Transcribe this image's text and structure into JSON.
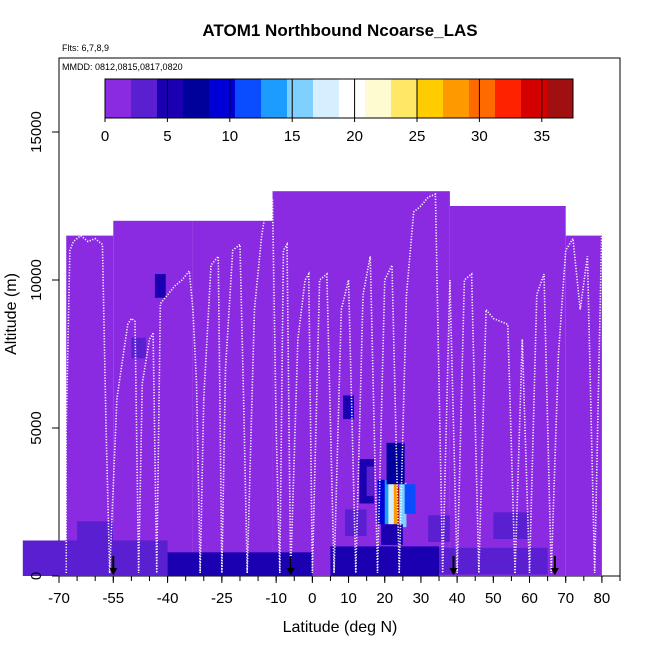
{
  "chart_data": {
    "type": "heatmap",
    "title": "ATOM1 Northbound Ncoarse_LAS",
    "flights_label": "Flts: 6,7,8,9",
    "dates_label": "MMDD: 0812,0815,0817,0820",
    "xlabel": "Latitude (deg N)",
    "ylabel": "Altitude (m)",
    "xlim": [
      -70,
      85
    ],
    "ylim": [
      0,
      17500
    ],
    "x_tick_labels": [
      "-70",
      "-55",
      "-40",
      "-25",
      "-10",
      "0",
      "10",
      "20",
      "30",
      "40",
      "50",
      "60",
      "70",
      "80"
    ],
    "x_tick_values": [
      -70,
      -55,
      -40,
      -25,
      -10,
      0,
      10,
      20,
      30,
      40,
      50,
      60,
      70,
      80
    ],
    "y_tick_labels": [
      "0",
      "5000",
      "10000",
      "15000"
    ],
    "y_tick_values": [
      0,
      5000,
      10000,
      15000
    ],
    "colorbar": {
      "range": [
        0,
        37.5
      ],
      "tick_labels": [
        "0",
        "5",
        "10",
        "15",
        "20",
        "25",
        "30",
        "35"
      ],
      "tick_values": [
        0,
        5,
        10,
        15,
        20,
        25,
        30,
        35
      ],
      "colors": [
        "#8a2be2",
        "#5a1fd0",
        "#1a00b0",
        "#00009a",
        "#0000d6",
        "#0a4cff",
        "#1c9cff",
        "#7fcfff",
        "#d6efff",
        "#ffffff",
        "#fffbd0",
        "#ffe866",
        "#ffcc00",
        "#ff9900",
        "#ff6a00",
        "#ff2200",
        "#d40000",
        "#a01010"
      ]
    },
    "background_value": 2,
    "coverage_bounds": [
      {
        "lat_from": -68,
        "lat_to": -55,
        "alt_top": 11500
      },
      {
        "lat_from": -55,
        "lat_to": -33,
        "alt_top": 12000
      },
      {
        "lat_from": -33,
        "lat_to": -11,
        "alt_top": 12000
      },
      {
        "lat_from": -11,
        "lat_to": 38,
        "alt_top": 13000
      },
      {
        "lat_from": 38,
        "lat_to": 70,
        "alt_top": 12500
      },
      {
        "lat_from": 70,
        "lat_to": 80,
        "alt_top": 11500
      }
    ],
    "cells": [
      {
        "lat": 20,
        "alt": 2500,
        "dlat": 4,
        "dalt": 1500,
        "value": 10
      },
      {
        "lat": 21,
        "alt": 2500,
        "dlat": 2,
        "dalt": 1500,
        "value": 14
      },
      {
        "lat": 22,
        "alt": 2400,
        "dlat": 2,
        "dalt": 1600,
        "value": 18
      },
      {
        "lat": 23,
        "alt": 2400,
        "dlat": 1,
        "dalt": 1400,
        "value": 28
      },
      {
        "lat": 24,
        "alt": 2300,
        "dlat": 1,
        "dalt": 1400,
        "value": 37
      },
      {
        "lat": 25,
        "alt": 2400,
        "dlat": 2,
        "dalt": 1500,
        "value": 16
      },
      {
        "lat": 27,
        "alt": 2600,
        "dlat": 3,
        "dalt": 1000,
        "value": 12
      },
      {
        "lat": 23,
        "alt": 3800,
        "dlat": 5,
        "dalt": 1400,
        "value": 8
      },
      {
        "lat": 22,
        "alt": 1400,
        "dlat": 6,
        "dalt": 700,
        "value": 6
      },
      {
        "lat": 15,
        "alt": 3200,
        "dlat": 4,
        "dalt": 1500,
        "value": 6
      },
      {
        "lat": 16,
        "alt": 3200,
        "dlat": 2,
        "dalt": 1000,
        "value": 4
      },
      {
        "lat": 10,
        "alt": 5700,
        "dlat": 3,
        "dalt": 800,
        "value": 5
      },
      {
        "lat": 11,
        "alt": 5600,
        "dlat": 1,
        "dalt": 500,
        "value": 9
      },
      {
        "lat": -42,
        "alt": 9800,
        "dlat": 3,
        "dalt": 800,
        "value": 5
      },
      {
        "lat": -48,
        "alt": 7700,
        "dlat": 4,
        "dalt": 700,
        "value": 3
      },
      {
        "lat": -60,
        "alt": 600,
        "dlat": 40,
        "dalt": 1200,
        "value": 4
      },
      {
        "lat": -20,
        "alt": 400,
        "dlat": 40,
        "dalt": 800,
        "value": 5
      },
      {
        "lat": 20,
        "alt": 500,
        "dlat": 30,
        "dalt": 1000,
        "value": 6
      },
      {
        "lat": 50,
        "alt": 500,
        "dlat": 30,
        "dalt": 900,
        "value": 4
      },
      {
        "lat": -60,
        "alt": 1500,
        "dlat": 10,
        "dalt": 700,
        "value": 3
      },
      {
        "lat": 55,
        "alt": 1700,
        "dlat": 10,
        "dalt": 900,
        "value": 3
      },
      {
        "lat": 12,
        "alt": 1800,
        "dlat": 6,
        "dalt": 900,
        "value": 4
      },
      {
        "lat": 35,
        "alt": 1600,
        "dlat": 6,
        "dalt": 900,
        "value": 3
      }
    ],
    "profile_tracks": [
      {
        "lat": [
          -68,
          -68,
          -67,
          -66,
          -64,
          -62,
          -60,
          -58,
          -57,
          -56
        ],
        "alt": [
          100,
          5000,
          11000,
          11300,
          11500,
          11300,
          11400,
          11200,
          5000,
          100
        ]
      },
      {
        "lat": [
          -56,
          -54,
          -51,
          -50,
          -49,
          -48,
          -47,
          -45,
          -44
        ],
        "alt": [
          100,
          6000,
          8500,
          8700,
          8600,
          100,
          6500,
          8000,
          8200
        ]
      },
      {
        "lat": [
          -44,
          -43,
          -42,
          -40,
          -38,
          -36,
          -34,
          -33,
          -32,
          -31,
          -30
        ],
        "alt": [
          8200,
          100,
          9200,
          9500,
          9800,
          10000,
          10300,
          9000,
          6500,
          100,
          6000
        ]
      },
      {
        "lat": [
          -30,
          -28,
          -26,
          -25,
          -24,
          -22,
          -20,
          -19,
          -18
        ],
        "alt": [
          6000,
          10500,
          10800,
          100,
          7000,
          11000,
          11200,
          6000,
          100
        ]
      },
      {
        "lat": [
          -18,
          -16,
          -14,
          -12,
          -11,
          -10,
          -9,
          -8,
          -7,
          -6
        ],
        "alt": [
          100,
          9000,
          11500,
          13000,
          12700,
          5000,
          100,
          11000,
          11200,
          100
        ]
      },
      {
        "lat": [
          -6,
          -4,
          -2,
          -1,
          0,
          2,
          4,
          6,
          8
        ],
        "alt": [
          100,
          8000,
          10000,
          10200,
          100,
          10000,
          10200,
          100,
          9000
        ]
      },
      {
        "lat": [
          8,
          10,
          12,
          14,
          16,
          18,
          20,
          22,
          24
        ],
        "alt": [
          9000,
          10000,
          100,
          9500,
          10800,
          100,
          10000,
          10500,
          100
        ]
      },
      {
        "lat": [
          24,
          26,
          28,
          30,
          32,
          34,
          36,
          38,
          40
        ],
        "alt": [
          100,
          9500,
          12300,
          12500,
          12800,
          12900,
          100,
          10000,
          100
        ]
      },
      {
        "lat": [
          40,
          42,
          44,
          46,
          48,
          50,
          52,
          54,
          56
        ],
        "alt": [
          100,
          10000,
          10200,
          100,
          9000,
          8700,
          8600,
          8500,
          100
        ]
      },
      {
        "lat": [
          56,
          58,
          60,
          62,
          64,
          66,
          68,
          70,
          72,
          74,
          76,
          78,
          80
        ],
        "alt": [
          100,
          8000,
          100,
          9500,
          10200,
          100,
          7500,
          11000,
          11400,
          9000,
          10800,
          100,
          12000
        ]
      }
    ],
    "arrow_lats": [
      -55,
      -6,
      39,
      67
    ],
    "arrow_color": "#000000",
    "track_color": "#ffffff"
  }
}
